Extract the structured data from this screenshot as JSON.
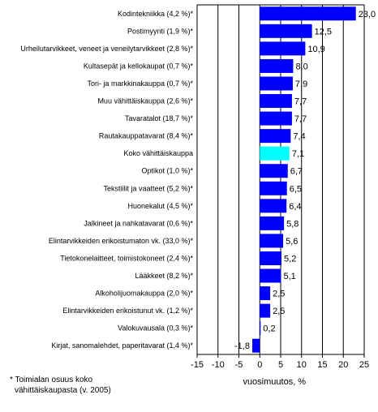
{
  "chart_data": {
    "type": "bar",
    "orientation": "horizontal",
    "categories": [
      "Kodintekniikka (4,2 %)*",
      "Postimyynti (1,9 %)*",
      "Urheilutarvikkeet, veneet ja veneilytarvikkeet (2,8 %)*",
      "Kultasepät ja kellokaupat (0,7 %)*",
      "Tori- ja markkinakauppa (0,7 %)*",
      "Muu vähittäiskauppa (2,6 %)*",
      "Tavaratalot (18,7 %)*",
      "Rautakauppatavarat (8,4 %)*",
      "Koko vähittäiskauppa",
      "Optikot (1,0 %)*",
      "Tekstiilit ja vaatteet (5,2 %)*",
      "Huonekalut (4,5 %)*",
      "Jalkineet ja nahkatavarat (0,6 %)*",
      "Elintarvikkeiden erikoistumaton vk. (33,0 %)*",
      "Tietokonelaitteet, toimistokoneet (2,4 %)*",
      "Lääkkeet (8,2 %)*",
      "Alkoholijuomakauppa (2,0 %)*",
      "Elintarvikkeiden erikoistunut vk. (1,2 %)*",
      "Valokuvausala (0,3 %)*",
      "Kirjat, sanomalehdet, paperitavarat (1,4 %)*"
    ],
    "values": [
      23.0,
      12.5,
      10.9,
      8.0,
      7.9,
      7.7,
      7.7,
      7.4,
      7.1,
      6.7,
      6.5,
      6.4,
      5.8,
      5.6,
      5.2,
      5.1,
      2.5,
      2.5,
      0.2,
      -1.8
    ],
    "value_labels": [
      "23,0",
      "12,5",
      "10,9",
      "8,0",
      "7,9",
      "7,7",
      "7,7",
      "7,4",
      "7,1",
      "6,7",
      "6,5",
      "6,4",
      "5,8",
      "5,6",
      "5,2",
      "5,1",
      "2,5",
      "2,5",
      "0,2",
      "-1,8"
    ],
    "highlight_category": "Koko vähittäiskauppa",
    "colors": {
      "bar": "#0000ff",
      "highlight": "#00ffff",
      "border": "#000000",
      "grid": "#000000"
    },
    "xlim": [
      -15,
      25
    ],
    "xticks": [
      -15,
      -10,
      -5,
      0,
      5,
      10,
      15,
      20,
      25
    ],
    "xlabel": "vuosimuutos, %",
    "gridlines": "vertical",
    "title": ""
  },
  "footnote": {
    "line1": "* Toimialan osuus koko",
    "line2": "vähittäiskaupasta (v. 2005)"
  }
}
